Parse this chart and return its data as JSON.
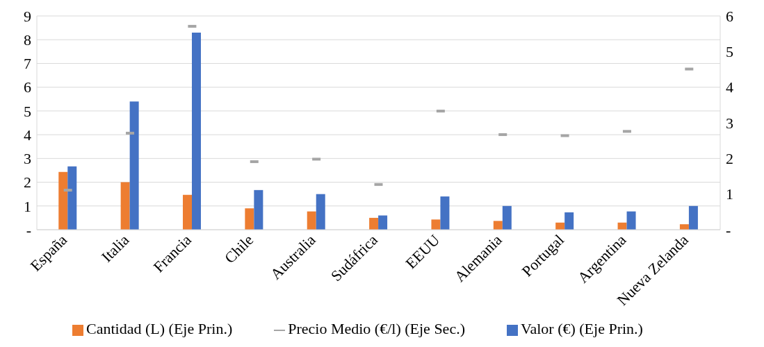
{
  "chart_data": {
    "type": "bar",
    "categories": [
      "España",
      "Italia",
      "Francia",
      "Chile",
      "Australia",
      "Sudáfrica",
      "EEUU",
      "Alemania",
      "Portugal",
      "Argentina",
      "Nueva Zelanda"
    ],
    "series": [
      {
        "name": "Cantidad (L) (Eje Prin.)",
        "color": "#ed7d31",
        "values": [
          2.43,
          2.0,
          1.47,
          0.9,
          0.77,
          0.5,
          0.43,
          0.37,
          0.3,
          0.3,
          0.23
        ]
      },
      {
        "name": "Valor (€) (Eje Prin.)",
        "color": "#4472c4",
        "values": [
          2.67,
          5.4,
          8.3,
          1.67,
          1.5,
          0.6,
          1.4,
          1.0,
          0.73,
          0.77,
          1.0
        ]
      },
      {
        "name": "Precio Medio (€/l) (Eje Sec.)",
        "type": "scatter",
        "axis": "y2",
        "color": "#a5a5a5",
        "values": [
          1.11,
          2.71,
          5.71,
          1.91,
          1.98,
          1.27,
          3.33,
          2.67,
          2.64,
          2.76,
          4.51
        ]
      }
    ],
    "ylim": [
      0,
      9
    ],
    "yticks": [
      {
        "value": 0,
        "label": "-"
      },
      1,
      2,
      3,
      4,
      5,
      6,
      7,
      8,
      9
    ],
    "y2lim": [
      0,
      6
    ],
    "y2ticks": [
      {
        "value": 0,
        "label": "-"
      },
      1,
      2,
      3,
      4,
      5,
      6
    ],
    "grid": "y",
    "legend": "bottom"
  }
}
